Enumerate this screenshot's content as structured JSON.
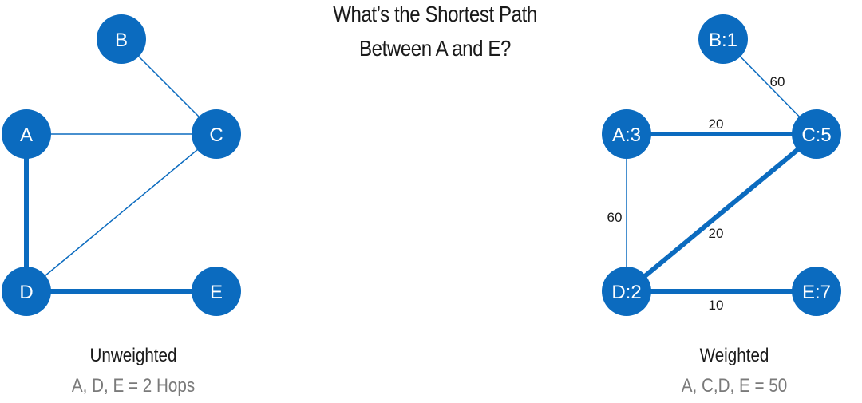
{
  "title": {
    "line1": "What’s the Shortest Path",
    "line2": "Between A and E?"
  },
  "colors": {
    "node": "#0b6bbf",
    "edge": "#0b6bbf",
    "node_text": "#ffffff"
  },
  "unweighted": {
    "caption": "Unweighted",
    "result": "A, D, E = 2 Hops",
    "nodes": {
      "A": "A",
      "B": "B",
      "C": "C",
      "D": "D",
      "E": "E"
    }
  },
  "weighted": {
    "caption": "Weighted",
    "result": "A, C,D, E = 50",
    "nodes": {
      "A": "A:3",
      "B": "B:1",
      "C": "C:5",
      "D": "D:2",
      "E": "E:7"
    },
    "edges": {
      "BC": "60",
      "AC": "20",
      "AD": "60",
      "CD": "20",
      "DE": "10"
    }
  }
}
